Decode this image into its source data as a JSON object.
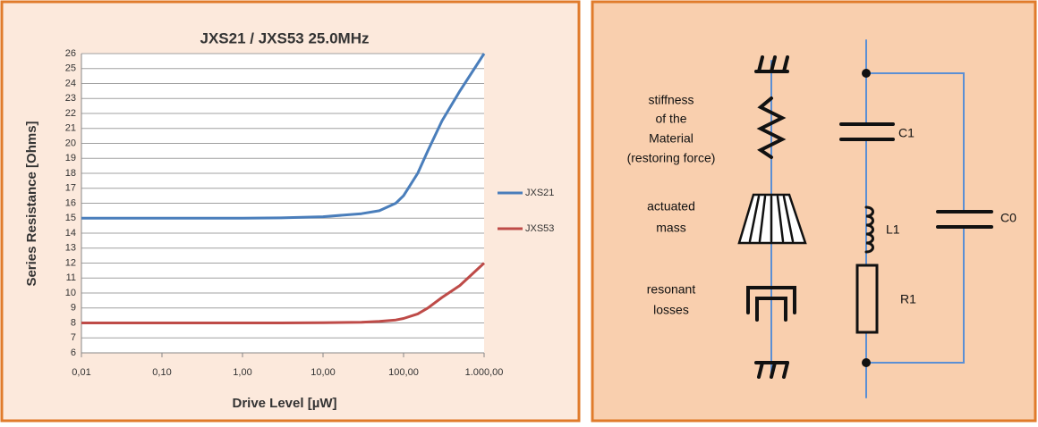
{
  "chart_data": {
    "type": "line",
    "title": "JXS21 / JXS53 25.0MHz",
    "x_label": "Drive Level [µW]",
    "y_label": "Series Resistance [Ohms]",
    "x": [
      0.01,
      0.1,
      1,
      3,
      10,
      30,
      50,
      80,
      100,
      150,
      200,
      300,
      500,
      1000
    ],
    "series": [
      {
        "name": "JXS21",
        "color": "#4a7ebb",
        "values": [
          15,
          15,
          15,
          15.02,
          15.1,
          15.3,
          15.5,
          16,
          16.5,
          18,
          19.5,
          21.5,
          23.5,
          26
        ]
      },
      {
        "name": "JXS53",
        "color": "#be4b48",
        "values": [
          8,
          8,
          8,
          8,
          8.02,
          8.05,
          8.1,
          8.2,
          8.3,
          8.6,
          9,
          9.7,
          10.5,
          12
        ]
      }
    ],
    "xscale": "log",
    "xlim": [
      0.01,
      1000
    ],
    "xticks": [
      {
        "value": 0.01,
        "label": "0,01"
      },
      {
        "value": 0.1,
        "label": "0,10"
      },
      {
        "value": 1,
        "label": "1,00"
      },
      {
        "value": 10,
        "label": "10,00"
      },
      {
        "value": 100,
        "label": "100,00"
      },
      {
        "value": 1000,
        "label": "1.000,00"
      }
    ],
    "ylim": [
      6,
      26
    ],
    "yticks": [
      6,
      7,
      8,
      9,
      10,
      11,
      12,
      13,
      14,
      15,
      16,
      17,
      18,
      19,
      20,
      21,
      22,
      23,
      24,
      25,
      26
    ],
    "grid": true,
    "legend": "right"
  },
  "diagram": {
    "mechanical": {
      "stiffness": [
        "stiffness",
        "of the",
        "Material",
        "(restoring force)"
      ],
      "mass": [
        "actuated",
        "mass"
      ],
      "losses": [
        "resonant",
        "losses"
      ]
    },
    "electrical": {
      "c1": "C1",
      "l1": "L1",
      "r1": "R1",
      "c0": "C0"
    }
  }
}
